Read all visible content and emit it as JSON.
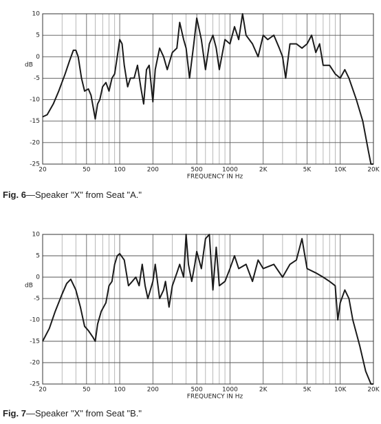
{
  "chart_data": [
    {
      "type": "line",
      "caption_label": "Fig. 6",
      "caption": "—Speaker \"X\" from Seat \"A.\"",
      "xlabel": "FREQUENCY IN Hz",
      "ylabel": "dB",
      "xscale": "log",
      "grid": true,
      "color": "#1a1a1a",
      "xlim": [
        20,
        20000
      ],
      "ylim": [
        -25,
        10
      ],
      "xticks": [
        20,
        50,
        100,
        200,
        500,
        1000,
        {
          "value": 2000,
          "label": "2K"
        },
        {
          "value": 5000,
          "label": "5K"
        },
        {
          "value": 10000,
          "label": "10K"
        },
        {
          "value": 20000,
          "label": "20K"
        }
      ],
      "xminor": [
        30,
        40,
        60,
        70,
        80,
        90,
        300,
        400,
        600,
        700,
        800,
        900,
        3000,
        4000,
        6000,
        7000,
        8000,
        9000
      ],
      "yticks": [
        10,
        5,
        0,
        -5,
        -10,
        -15,
        -20,
        -25
      ],
      "x": [
        20,
        22,
        25,
        28,
        32,
        35,
        38,
        40,
        42,
        45,
        48,
        52,
        55,
        60,
        63,
        66,
        70,
        75,
        80,
        85,
        90,
        95,
        100,
        105,
        110,
        118,
        125,
        135,
        145,
        155,
        165,
        175,
        185,
        200,
        210,
        230,
        250,
        270,
        300,
        330,
        350,
        380,
        400,
        430,
        470,
        500,
        550,
        600,
        650,
        700,
        750,
        800,
        900,
        1000,
        1100,
        1200,
        1300,
        1400,
        1600,
        1800,
        2000,
        2200,
        2500,
        2800,
        3000,
        3200,
        3500,
        4000,
        4500,
        5000,
        5500,
        6000,
        6500,
        7000,
        8000,
        9000,
        10000,
        11000,
        12000,
        14000,
        16000,
        18000,
        19000,
        20000
      ],
      "values": [
        -14,
        -13.5,
        -11,
        -8,
        -4,
        -1,
        1.5,
        1.5,
        0,
        -5,
        -8,
        -7.5,
        -9,
        -14.5,
        -11,
        -10,
        -7,
        -6,
        -8,
        -5,
        -4,
        0,
        4,
        3,
        -2,
        -7,
        -5,
        -5,
        -2,
        -7,
        -11,
        -3,
        -2,
        -10.5,
        -3,
        2,
        0,
        -3,
        1,
        2,
        8,
        4,
        2,
        -5,
        3,
        9,
        4,
        -3,
        3,
        5,
        2,
        -3,
        4,
        3,
        7,
        4,
        10,
        5,
        3,
        0,
        5,
        4,
        5,
        2,
        0,
        -5,
        3,
        3,
        2,
        3,
        5,
        1,
        3,
        -2,
        -2,
        -4,
        -5,
        -3,
        -5,
        -10,
        -15,
        -22,
        -25,
        -25
      ]
    },
    {
      "type": "line",
      "caption_label": "Fig. 7",
      "caption": "—Speaker \"X\" from Seat \"B.\"",
      "xlabel": "FREQUENCY IN Hz",
      "ylabel": "dB",
      "xscale": "log",
      "grid": true,
      "color": "#1a1a1a",
      "xlim": [
        20,
        20000
      ],
      "ylim": [
        -25,
        10
      ],
      "xticks": [
        20,
        50,
        100,
        200,
        500,
        1000,
        {
          "value": 2000,
          "label": "2K"
        },
        {
          "value": 5000,
          "label": "5K"
        },
        {
          "value": 10000,
          "label": "10K"
        },
        {
          "value": 20000,
          "label": "20K"
        }
      ],
      "xminor": [
        30,
        40,
        60,
        70,
        80,
        90,
        300,
        400,
        600,
        700,
        800,
        900,
        3000,
        4000,
        6000,
        7000,
        8000,
        9000
      ],
      "yticks": [
        10,
        5,
        0,
        -5,
        -10,
        -15,
        -20,
        -25
      ],
      "x": [
        20,
        23,
        26,
        30,
        33,
        36,
        40,
        44,
        48,
        52,
        57,
        60,
        63,
        68,
        75,
        80,
        85,
        90,
        95,
        100,
        110,
        120,
        130,
        140,
        150,
        160,
        170,
        180,
        200,
        210,
        230,
        250,
        260,
        280,
        300,
        330,
        350,
        380,
        400,
        420,
        450,
        480,
        500,
        550,
        600,
        650,
        700,
        750,
        800,
        900,
        1000,
        1100,
        1200,
        1400,
        1600,
        1800,
        2000,
        2500,
        3000,
        3500,
        4000,
        4500,
        5000,
        6000,
        7000,
        8000,
        9000,
        9500,
        10000,
        11000,
        12000,
        13000,
        15000,
        17000,
        19000,
        20000
      ],
      "values": [
        -15,
        -12,
        -8,
        -4,
        -1.5,
        -0.5,
        -3,
        -7,
        -11.5,
        -12.5,
        -14,
        -15,
        -11,
        -8,
        -6,
        -2,
        -1,
        3,
        5,
        5.5,
        4,
        -2,
        -1,
        0,
        -2,
        3,
        -2,
        -5,
        -1,
        3,
        -5,
        -3,
        -1,
        -7,
        -2,
        1,
        3,
        0,
        10,
        3,
        -1,
        3,
        6,
        2,
        9,
        10,
        -3,
        7,
        -2,
        -1,
        2,
        5,
        2,
        3,
        -1,
        4,
        2,
        3,
        0,
        3,
        4,
        9,
        2,
        1,
        0,
        -1,
        -2,
        -10,
        -6,
        -3,
        -5,
        -10,
        -16,
        -22,
        -25,
        -25
      ]
    }
  ]
}
